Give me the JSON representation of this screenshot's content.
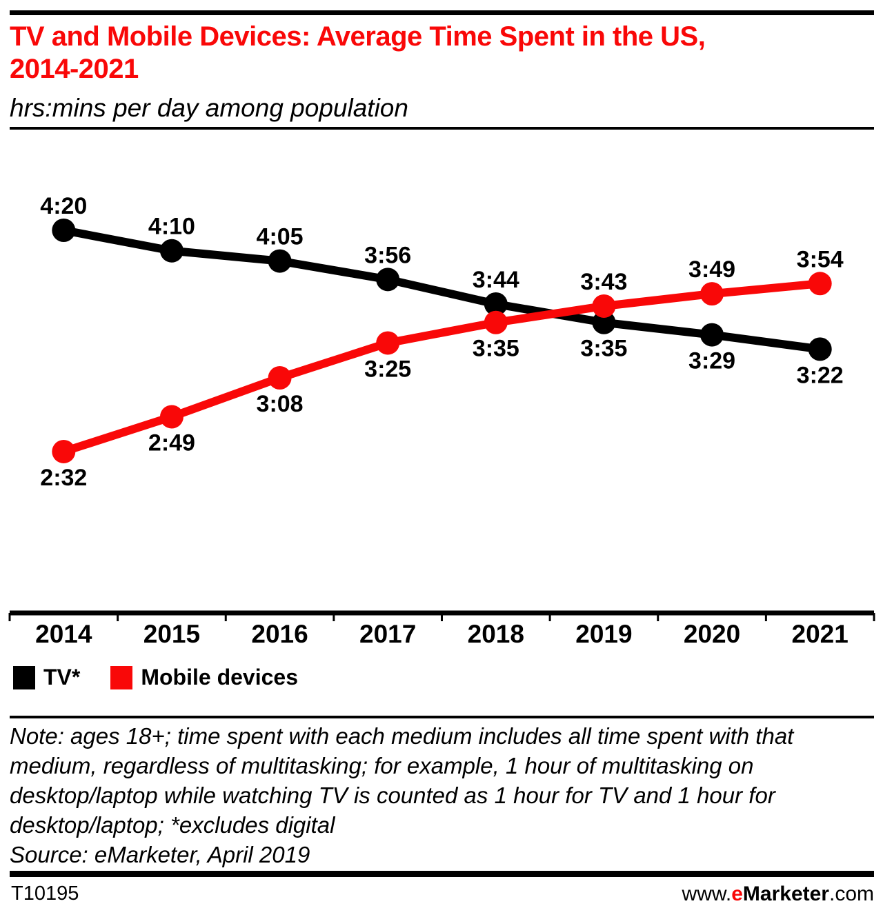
{
  "colors": {
    "accent_red": "#F90808",
    "black": "#000000"
  },
  "header": {
    "title_line1": "TV and Mobile Devices: Average Time Spent in the US,",
    "title_line2": "2014-2021",
    "subtitle": "hrs:mins per day among population"
  },
  "chart_data": {
    "type": "line",
    "title": "TV and Mobile Devices: Average Time Spent in the US, 2014-2021",
    "subtitle": "hrs:mins per day among population",
    "xlabel": "",
    "ylabel": "",
    "grid": false,
    "legend_position": "bottom-left",
    "categories": [
      "2014",
      "2015",
      "2016",
      "2017",
      "2018",
      "2019",
      "2020",
      "2021"
    ],
    "series": [
      {
        "name": "TV*",
        "color": "#000000",
        "values": [
          "4:20",
          "4:10",
          "4:05",
          "3:56",
          "3:44",
          "3:35",
          "3:29",
          "3:22"
        ],
        "values_minutes": [
          260,
          250,
          245,
          236,
          224,
          215,
          209,
          202
        ],
        "label_side": [
          "above",
          "above",
          "above",
          "above",
          "above",
          "below",
          "below",
          "below"
        ]
      },
      {
        "name": "Mobile devices",
        "color": "#F90808",
        "values": [
          "2:32",
          "2:49",
          "3:08",
          "3:25",
          "3:35",
          "3:43",
          "3:49",
          "3:54"
        ],
        "values_minutes": [
          152,
          169,
          188,
          205,
          215,
          223,
          229,
          234
        ],
        "label_side": [
          "below",
          "below",
          "below",
          "below",
          "below",
          "above",
          "above",
          "above"
        ]
      }
    ]
  },
  "legend": {
    "items": [
      {
        "label": "TV*",
        "color": "#000000"
      },
      {
        "label": "Mobile devices",
        "color": "#F90808"
      }
    ]
  },
  "note": {
    "note_text": "Note: ages 18+; time spent with each medium includes all time spent with that medium, regardless of multitasking; for example, 1 hour of multitasking on desktop/laptop while watching TV is counted as 1 hour for TV and 1 hour for desktop/laptop; *excludes digital",
    "source_text": "Source: eMarketer, April 2019"
  },
  "footer": {
    "chart_id": "T10195",
    "website": {
      "prefix": "www.",
      "brand_e": "e",
      "brand_rest": "Marketer",
      "suffix": ".com"
    }
  }
}
